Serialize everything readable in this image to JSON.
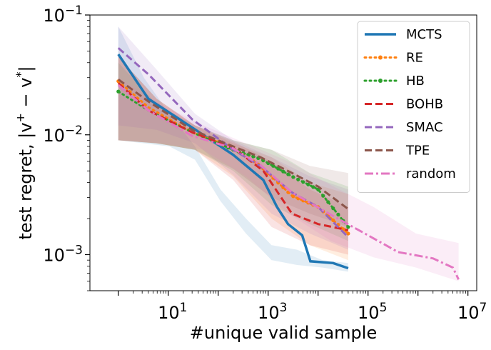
{
  "chart_data": {
    "type": "line",
    "xlabel": "#unique valid sample",
    "ylabel": "test regret, |v+ − v*|",
    "xscale": "log",
    "yscale": "log",
    "xlim": [
      0.27,
      15000000
    ],
    "ylim": [
      0.0005,
      0.1
    ],
    "x_tick_labels": [
      {
        "value": 10,
        "base": "10",
        "exp": "1"
      },
      {
        "value": 1000,
        "base": "10",
        "exp": "3"
      },
      {
        "value": 100000,
        "base": "10",
        "exp": "5"
      },
      {
        "value": 10000000,
        "base": "10",
        "exp": "7"
      }
    ],
    "y_tick_labels": [
      {
        "value": 0.001,
        "base": "10",
        "exp": "−3"
      },
      {
        "value": 0.01,
        "base": "10",
        "exp": "−2"
      },
      {
        "value": 0.1,
        "base": "10",
        "exp": "−1"
      }
    ],
    "legend_position": "top-right",
    "series": [
      {
        "name": "MCTS",
        "color": "#1f77b4",
        "style": "solid",
        "width": 3.5,
        "marker": false,
        "band": {
          "upper": [
            0.08,
            0.03,
            0.015,
            0.008,
            0.0035,
            0.002,
            0.0012,
            0.0011,
            0.0009,
            0.00085
          ],
          "lower": [
            0.009,
            0.0085,
            0.008,
            0.0062,
            0.0028,
            0.0015,
            0.0009,
            0.00082,
            0.00078,
            0.00072
          ]
        },
        "points": [
          [
            1,
            0.047
          ],
          [
            4,
            0.02
          ],
          [
            30,
            0.0115
          ],
          [
            200,
            0.0068
          ],
          [
            800,
            0.0042
          ],
          [
            1500,
            0.0025
          ],
          [
            2500,
            0.0018
          ],
          [
            4800,
            0.00145
          ],
          [
            7000,
            0.00088
          ],
          [
            20000,
            0.00085
          ],
          [
            40000,
            0.00077
          ]
        ]
      },
      {
        "name": "RE",
        "color": "#ff7f0e",
        "style": "dotted",
        "width": 3,
        "marker": true,
        "band": {
          "upper": [
            0.045,
            0.02,
            0.012,
            0.0085,
            0.0065,
            0.004,
            0.0032
          ],
          "lower": [
            0.009,
            0.0085,
            0.0075,
            0.0045,
            0.002,
            0.0012,
            0.0009
          ]
        },
        "points": [
          [
            1,
            0.028
          ],
          [
            4,
            0.017
          ],
          [
            30,
            0.0105
          ],
          [
            200,
            0.0078
          ],
          [
            700,
            0.0055
          ],
          [
            3000,
            0.0031
          ],
          [
            10000,
            0.0025
          ],
          [
            40000,
            0.0015
          ]
        ]
      },
      {
        "name": "HB",
        "color": "#2ca02c",
        "style": "dotted",
        "width": 3,
        "marker": true,
        "band": {
          "upper": [
            0.04,
            0.018,
            0.012,
            0.009,
            0.0075,
            0.0048,
            0.0037
          ],
          "lower": [
            0.009,
            0.0085,
            0.0075,
            0.005,
            0.0026,
            0.0018,
            0.0013
          ]
        },
        "points": [
          [
            1,
            0.023
          ],
          [
            4,
            0.016
          ],
          [
            30,
            0.0105
          ],
          [
            200,
            0.0075
          ],
          [
            700,
            0.0063
          ],
          [
            3000,
            0.0045
          ],
          [
            10000,
            0.0035
          ],
          [
            40000,
            0.0017
          ]
        ]
      },
      {
        "name": "BOHB",
        "color": "#d62728",
        "style": "dashed",
        "width": 3,
        "marker": false,
        "band": {
          "upper": [
            0.045,
            0.02,
            0.012,
            0.0088,
            0.006,
            0.0035,
            0.0025
          ],
          "lower": [
            0.009,
            0.0085,
            0.0075,
            0.0042,
            0.0017,
            0.0012,
            0.001
          ]
        },
        "points": [
          [
            1,
            0.027
          ],
          [
            4,
            0.016
          ],
          [
            30,
            0.0105
          ],
          [
            200,
            0.0078
          ],
          [
            800,
            0.005
          ],
          [
            3000,
            0.0022
          ],
          [
            10000,
            0.0018
          ],
          [
            40000,
            0.0016
          ]
        ]
      },
      {
        "name": "SMAC",
        "color": "#9467bd",
        "style": "dashed",
        "width": 3,
        "marker": false,
        "band": {
          "upper": [
            0.08,
            0.035,
            0.015,
            0.009,
            0.0065,
            0.0045,
            0.0035
          ],
          "lower": [
            0.012,
            0.011,
            0.0085,
            0.0046,
            0.0022,
            0.0015,
            0.0011
          ]
        },
        "points": [
          [
            1,
            0.053
          ],
          [
            4,
            0.032
          ],
          [
            30,
            0.0135
          ],
          [
            200,
            0.0075
          ],
          [
            700,
            0.0055
          ],
          [
            3000,
            0.0033
          ],
          [
            10000,
            0.0025
          ],
          [
            40000,
            0.0014
          ]
        ]
      },
      {
        "name": "TPE",
        "color": "#8c564b",
        "style": "dashed",
        "width": 3,
        "marker": false,
        "band": {
          "upper": [
            0.045,
            0.02,
            0.012,
            0.009,
            0.0075,
            0.0055,
            0.0048
          ],
          "lower": [
            0.009,
            0.0085,
            0.0075,
            0.0052,
            0.003,
            0.0022,
            0.0017
          ]
        },
        "points": [
          [
            1,
            0.029
          ],
          [
            4,
            0.019
          ],
          [
            30,
            0.011
          ],
          [
            200,
            0.008
          ],
          [
            700,
            0.0065
          ],
          [
            3000,
            0.0048
          ],
          [
            10000,
            0.0037
          ],
          [
            40000,
            0.0024
          ]
        ]
      },
      {
        "name": "random",
        "color": "#e377c2",
        "style": "dashdot",
        "width": 3,
        "marker": false,
        "band": {
          "upper": [
            0.03,
            0.018,
            0.012,
            0.0085,
            0.006,
            0.0038,
            0.0025,
            0.0015,
            0.00125
          ],
          "lower": [
            0.009,
            0.0085,
            0.0075,
            0.0045,
            0.0022,
            0.0013,
            0.00095,
            0.00078,
            0.0006
          ]
        },
        "points": [
          [
            1,
            0.026
          ],
          [
            4,
            0.016
          ],
          [
            30,
            0.0098
          ],
          [
            200,
            0.0077
          ],
          [
            700,
            0.0056
          ],
          [
            3000,
            0.0033
          ],
          [
            20000,
            0.0021
          ],
          [
            100000,
            0.00145
          ],
          [
            400000,
            0.00105
          ],
          [
            2000000,
            0.00093
          ],
          [
            5000000,
            0.00078
          ],
          [
            6500000,
            0.00062
          ]
        ]
      }
    ]
  }
}
